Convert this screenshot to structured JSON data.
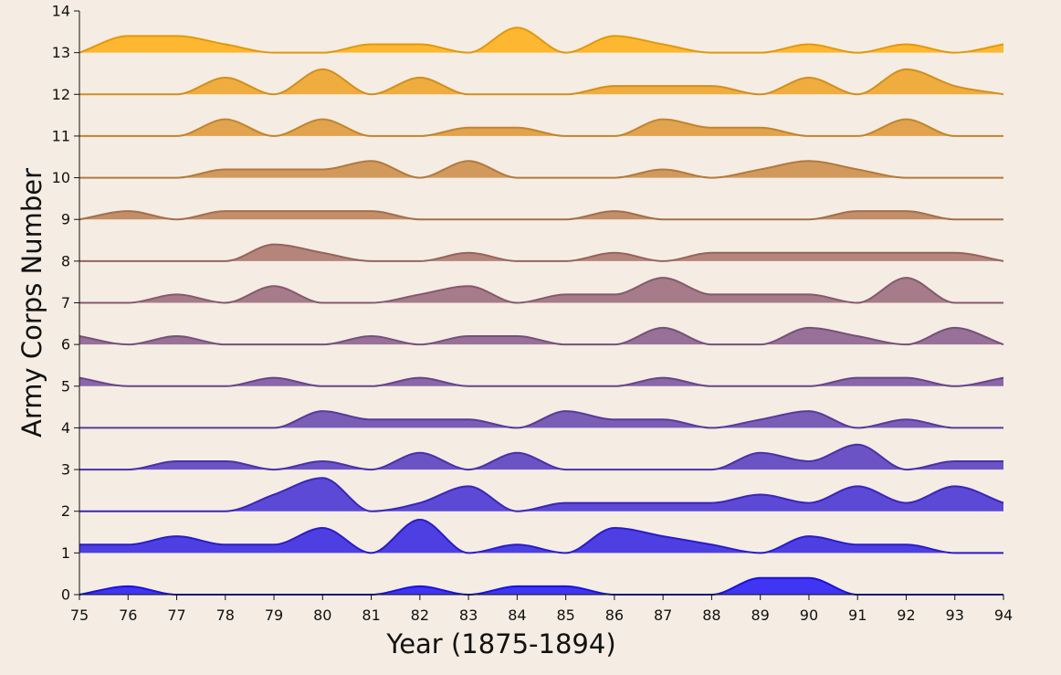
{
  "chart_data": {
    "type": "area",
    "title": "",
    "xlabel": "Year (1875-1894)",
    "ylabel": "Army Corps Number",
    "xlim": [
      75,
      94
    ],
    "ylim": [
      0,
      14
    ],
    "x": [
      75,
      76,
      77,
      78,
      79,
      80,
      81,
      82,
      83,
      84,
      85,
      86,
      87,
      88,
      89,
      90,
      91,
      92,
      93,
      94
    ],
    "x_tick_labels": [
      "75",
      "76",
      "77",
      "78",
      "79",
      "80",
      "81",
      "82",
      "83",
      "84",
      "85",
      "86",
      "87",
      "88",
      "89",
      "90",
      "91",
      "92",
      "93",
      "94"
    ],
    "y_tick_labels": [
      "0",
      "1",
      "2",
      "3",
      "4",
      "5",
      "6",
      "7",
      "8",
      "9",
      "10",
      "11",
      "12",
      "13",
      "14"
    ],
    "color_start": "#1f14f5",
    "color_end": "#ffad10",
    "series": [
      {
        "baseline": 0,
        "values": [
          0.0,
          0.2,
          0.0,
          0.0,
          0.0,
          0.0,
          0.0,
          0.2,
          0.0,
          0.2,
          0.2,
          0.0,
          0.0,
          0.0,
          0.4,
          0.4,
          0.0,
          0.0,
          0.0,
          0.0
        ]
      },
      {
        "baseline": 1,
        "values": [
          0.2,
          0.2,
          0.4,
          0.2,
          0.2,
          0.6,
          0.0,
          0.8,
          0.0,
          0.2,
          0.0,
          0.6,
          0.4,
          0.2,
          0.0,
          0.4,
          0.2,
          0.2,
          0.0,
          0.0
        ]
      },
      {
        "baseline": 2,
        "values": [
          0.0,
          0.0,
          0.0,
          0.0,
          0.4,
          0.8,
          0.0,
          0.2,
          0.6,
          0.0,
          0.2,
          0.2,
          0.2,
          0.2,
          0.4,
          0.2,
          0.6,
          0.2,
          0.6,
          0.2
        ]
      },
      {
        "baseline": 3,
        "values": [
          0.0,
          0.0,
          0.2,
          0.2,
          0.0,
          0.2,
          0.0,
          0.4,
          0.0,
          0.4,
          0.0,
          0.0,
          0.0,
          0.0,
          0.4,
          0.2,
          0.6,
          0.0,
          0.2,
          0.2
        ]
      },
      {
        "baseline": 4,
        "values": [
          0.0,
          0.0,
          0.0,
          0.0,
          0.0,
          0.4,
          0.2,
          0.2,
          0.2,
          0.0,
          0.4,
          0.2,
          0.2,
          0.0,
          0.2,
          0.4,
          0.0,
          0.2,
          0.0,
          0.0
        ]
      },
      {
        "baseline": 5,
        "values": [
          0.2,
          0.0,
          0.0,
          0.0,
          0.2,
          0.0,
          0.0,
          0.2,
          0.0,
          0.0,
          0.0,
          0.0,
          0.2,
          0.0,
          0.0,
          0.0,
          0.2,
          0.2,
          0.0,
          0.2
        ]
      },
      {
        "baseline": 6,
        "values": [
          0.2,
          0.0,
          0.2,
          0.0,
          0.0,
          0.0,
          0.2,
          0.0,
          0.2,
          0.2,
          0.0,
          0.0,
          0.4,
          0.0,
          0.0,
          0.4,
          0.2,
          0.0,
          0.4,
          0.0
        ]
      },
      {
        "baseline": 7,
        "values": [
          0.0,
          0.0,
          0.2,
          0.0,
          0.4,
          0.0,
          0.0,
          0.2,
          0.4,
          0.0,
          0.2,
          0.2,
          0.6,
          0.2,
          0.2,
          0.2,
          0.0,
          0.6,
          0.0,
          0.0
        ]
      },
      {
        "baseline": 8,
        "values": [
          0.0,
          0.0,
          0.0,
          0.0,
          0.4,
          0.2,
          0.0,
          0.0,
          0.2,
          0.0,
          0.0,
          0.2,
          0.0,
          0.2,
          0.2,
          0.2,
          0.2,
          0.2,
          0.2,
          0.0
        ]
      },
      {
        "baseline": 9,
        "values": [
          0.0,
          0.2,
          0.0,
          0.2,
          0.2,
          0.2,
          0.2,
          0.0,
          0.0,
          0.0,
          0.0,
          0.2,
          0.0,
          0.0,
          0.0,
          0.0,
          0.2,
          0.2,
          0.0,
          0.0
        ]
      },
      {
        "baseline": 10,
        "values": [
          0.0,
          0.0,
          0.0,
          0.2,
          0.2,
          0.2,
          0.4,
          0.0,
          0.4,
          0.0,
          0.0,
          0.0,
          0.2,
          0.0,
          0.2,
          0.4,
          0.2,
          0.0,
          0.0,
          0.0
        ]
      },
      {
        "baseline": 11,
        "values": [
          0.0,
          0.0,
          0.0,
          0.4,
          0.0,
          0.4,
          0.0,
          0.0,
          0.2,
          0.2,
          0.0,
          0.0,
          0.4,
          0.2,
          0.2,
          0.0,
          0.0,
          0.4,
          0.0,
          0.0
        ]
      },
      {
        "baseline": 12,
        "values": [
          0.0,
          0.0,
          0.0,
          0.4,
          0.0,
          0.6,
          0.0,
          0.4,
          0.0,
          0.0,
          0.0,
          0.2,
          0.2,
          0.2,
          0.0,
          0.4,
          0.0,
          0.6,
          0.2,
          0.0
        ]
      },
      {
        "baseline": 13,
        "values": [
          0.0,
          0.4,
          0.4,
          0.2,
          0.0,
          0.0,
          0.2,
          0.2,
          0.0,
          0.6,
          0.0,
          0.4,
          0.2,
          0.0,
          0.0,
          0.2,
          0.0,
          0.2,
          0.0,
          0.2
        ]
      }
    ]
  }
}
